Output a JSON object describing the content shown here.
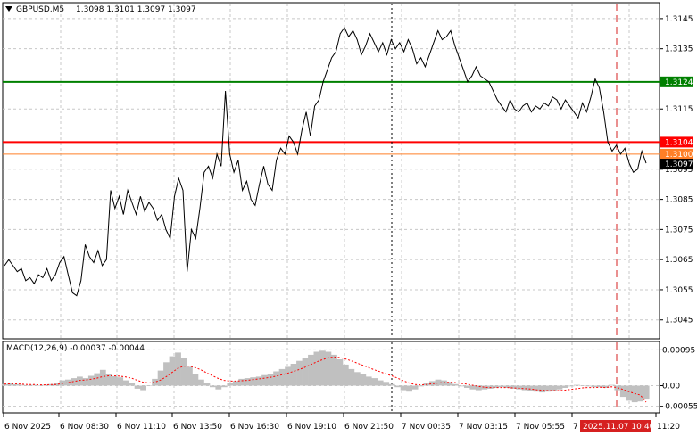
{
  "header": {
    "symbol_label": "GBPUSD,M5",
    "ohlc": "1.3098 1.3101 1.3097 1.3097"
  },
  "macd_label": "MACD(12,26,9) -0.00037 -0.00044",
  "chart_data": [
    {
      "type": "line",
      "title": "GBPUSD,M5",
      "ylim": [
        1.3039,
        1.315
      ],
      "yticks": [
        "1.3145",
        "1.3135",
        "1.3124",
        "1.3115",
        "1.3104",
        "1.3100",
        "1.3097",
        "1.3095",
        "1.3085",
        "1.3075",
        "1.3065",
        "1.3055",
        "1.3045"
      ],
      "xticks": [
        "6 Nov 2025",
        "6 Nov 08:30",
        "6 Nov 11:10",
        "6 Nov 13:50",
        "6 Nov 16:30",
        "6 Nov 19:10",
        "6 Nov 21:50",
        "7 Nov 00:35",
        "7 Nov 03:15",
        "7 Nov 05:55",
        "7",
        "2025.11.07 10:40",
        "11:20"
      ],
      "hlines": [
        {
          "value": 1.3124,
          "label": "1.3124",
          "color": "#008000"
        },
        {
          "value": 1.3104,
          "label": "1.3104",
          "color": "#ff0000"
        },
        {
          "value": 1.31,
          "label": "1.3100",
          "color": "#ff7f27"
        }
      ],
      "current_price": {
        "value": 1.3097,
        "label": "1.3097"
      },
      "vlines": [
        {
          "position": "7 Nov 00:00",
          "style": "dotted",
          "color": "#000000"
        },
        {
          "position": "2025.11.07 10:40",
          "style": "dashed",
          "color": "#d62020"
        }
      ],
      "series": [
        {
          "values": [
            1.3063,
            1.3065,
            1.3063,
            1.3061,
            1.3062,
            1.3058,
            1.3059,
            1.3057,
            1.306,
            1.3059,
            1.3062,
            1.3058,
            1.306,
            1.3064,
            1.3066,
            1.306,
            1.3054,
            1.3053,
            1.3058,
            1.307,
            1.3066,
            1.3064,
            1.3068,
            1.3063,
            1.3065,
            1.3088,
            1.3082,
            1.3086,
            1.308,
            1.3088,
            1.3084,
            1.308,
            1.3086,
            1.3081,
            1.3084,
            1.3082,
            1.3078,
            1.308,
            1.3075,
            1.3072,
            1.3086,
            1.3092,
            1.3088,
            1.3061,
            1.3075,
            1.3072,
            1.3082,
            1.3094,
            1.3096,
            1.3092,
            1.31,
            1.3096,
            1.3121,
            1.31,
            1.3094,
            1.3098,
            1.3088,
            1.3091,
            1.3085,
            1.3083,
            1.309,
            1.3096,
            1.309,
            1.3088,
            1.3098,
            1.3102,
            1.31,
            1.3106,
            1.3104,
            1.31,
            1.3108,
            1.3114,
            1.3106,
            1.3116,
            1.3118,
            1.3124,
            1.3128,
            1.3132,
            1.3134,
            1.314,
            1.3142,
            1.3139,
            1.3141,
            1.3138,
            1.3133,
            1.3136,
            1.314,
            1.3137,
            1.3134,
            1.3137,
            1.3133,
            1.3138,
            1.3135,
            1.3137,
            1.3134,
            1.3138,
            1.3135,
            1.313,
            1.3132,
            1.3129,
            1.3133,
            1.3137,
            1.3141,
            1.3138,
            1.3139,
            1.3141,
            1.3136,
            1.3132,
            1.3128,
            1.3124,
            1.3126,
            1.3129,
            1.3126,
            1.3125,
            1.3124,
            1.3121,
            1.3118,
            1.3116,
            1.3114,
            1.3118,
            1.3115,
            1.3114,
            1.3116,
            1.3117,
            1.3114,
            1.3116,
            1.3115,
            1.3117,
            1.3116,
            1.3119,
            1.3118,
            1.3115,
            1.3118,
            1.3116,
            1.3114,
            1.3112,
            1.3117,
            1.3114,
            1.3119,
            1.3125,
            1.3122,
            1.3114,
            1.3104,
            1.3101,
            1.3103,
            1.31,
            1.3102,
            1.3097,
            1.3094,
            1.3095,
            1.3101,
            1.3097
          ]
        }
      ]
    },
    {
      "type": "bar",
      "title": "MACD(12,26,9)",
      "ylim": [
        -0.0007,
        0.00115
      ],
      "yticks": [
        "0.00095",
        "0.00",
        "-0.00055"
      ],
      "series": [
        {
          "name": "MACD",
          "values": [
            4e-05,
            6e-05,
            4e-05,
            2e-05,
            1e-05,
            2e-05,
            0.0,
            2e-05,
            4e-05,
            6e-05,
            0.00014,
            0.00016,
            0.0002,
            0.00024,
            0.0002,
            0.00026,
            0.00033,
            0.00042,
            0.0003,
            0.00025,
            0.00022,
            0.00014,
            8e-05,
            -8e-05,
            -0.00012,
            0.0,
            0.00018,
            0.0004,
            0.00062,
            0.00078,
            0.00088,
            0.00074,
            0.0005,
            0.0003,
            0.00016,
            6e-05,
            -4e-05,
            -0.0001,
            -4e-05,
            6e-05,
            0.00012,
            0.00018,
            0.0002,
            0.00022,
            0.00024,
            0.00028,
            0.00032,
            0.00038,
            0.00044,
            0.0005,
            0.00058,
            0.00066,
            0.00074,
            0.00082,
            0.0009,
            0.00093,
            0.0009,
            0.00082,
            0.0007,
            0.00056,
            0.00044,
            0.00036,
            0.0003,
            0.00024,
            0.0002,
            0.00014,
            0.0001,
            4e-05,
            -4e-05,
            -0.00012,
            -0.00016,
            -0.0001,
            -2e-05,
            6e-05,
            0.00012,
            0.00016,
            0.00014,
            0.0001,
            4e-05,
            -2e-05,
            -6e-05,
            -0.0001,
            -0.00012,
            -0.0001,
            -8e-05,
            -6e-05,
            -4e-05,
            -6e-05,
            -8e-05,
            -0.0001,
            -0.00012,
            -0.00014,
            -0.00016,
            -0.00018,
            -0.00016,
            -0.00014,
            -0.0001,
            -6e-05,
            -2e-05,
            2e-05,
            0.0,
            -2e-05,
            -4e-05,
            -4e-05,
            -6e-05,
            2e-05,
            -0.00012,
            -0.0003,
            -0.0004,
            -0.00044,
            -0.00042,
            -0.00037
          ]
        },
        {
          "name": "Signal",
          "values": [
            4e-05,
            5e-05,
            5e-05,
            4e-05,
            3e-05,
            3e-05,
            2e-05,
            2e-05,
            3e-05,
            3e-05,
            6e-05,
            8e-05,
            0.00011,
            0.00014,
            0.00015,
            0.00017,
            0.0002,
            0.00024,
            0.00026,
            0.00026,
            0.00025,
            0.00023,
            0.0002,
            0.00014,
            9e-05,
            7e-05,
            9e-05,
            0.00015,
            0.00024,
            0.00035,
            0.00046,
            0.00052,
            0.00052,
            0.00048,
            0.00042,
            0.00034,
            0.00026,
            0.00019,
            0.00014,
            0.00012,
            0.00012,
            0.00013,
            0.00014,
            0.00016,
            0.00018,
            0.0002,
            0.00022,
            0.00025,
            0.00029,
            0.00033,
            0.00038,
            0.00043,
            0.00049,
            0.00056,
            0.00063,
            0.00069,
            0.00074,
            0.00076,
            0.00075,
            0.00071,
            0.00066,
            0.0006,
            0.00054,
            0.00048,
            0.00042,
            0.00037,
            0.00031,
            0.00026,
            0.0002,
            0.00013,
            7e-05,
            3e-05,
            2e-05,
            3e-05,
            5e-05,
            7e-05,
            8e-05,
            9e-05,
            8e-05,
            6e-05,
            4e-05,
            1e-05,
            -2e-05,
            -4e-05,
            -5e-05,
            -5e-05,
            -5e-05,
            -5e-05,
            -6e-05,
            -7e-05,
            -8e-05,
            -9e-05,
            -0.00011,
            -0.00012,
            -0.00013,
            -0.00013,
            -0.00013,
            -0.00012,
            -0.0001,
            -8e-05,
            -6e-05,
            -5e-05,
            -5e-05,
            -4e-05,
            -5e-05,
            -3e-05,
            -5e-05,
            -0.0001,
            -0.00016,
            -0.00021,
            -0.00025,
            -0.00044
          ]
        }
      ]
    }
  ]
}
